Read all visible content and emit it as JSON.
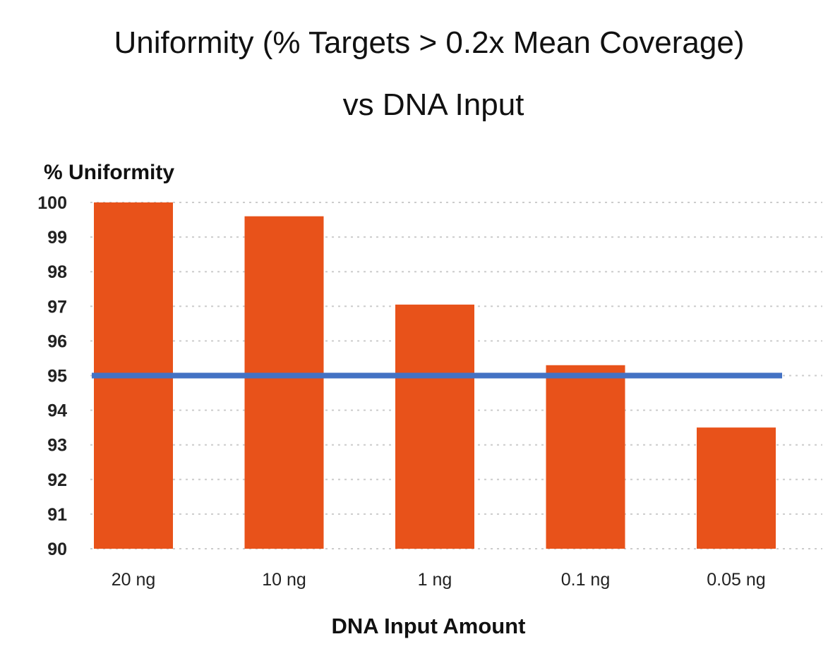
{
  "chart_data": {
    "type": "bar",
    "title_lines": [
      "Uniformity (% Targets > 0.2x Mean Coverage)",
      "vs DNA Input"
    ],
    "ylabel": "% Uniformity",
    "xlabel": "DNA Input Amount",
    "categories": [
      "20 ng",
      "10 ng",
      "1 ng",
      "0.1 ng",
      "0.05 ng"
    ],
    "values": [
      100,
      99.6,
      97.05,
      95.3,
      93.5
    ],
    "ylim": [
      90,
      100
    ],
    "yticks": [
      "90",
      "91",
      "92",
      "93",
      "94",
      "95",
      "96",
      "97",
      "98",
      "99",
      "100"
    ],
    "reference_line": 95,
    "grid": "dotted horizontal",
    "legend": "none",
    "colors": {
      "bar": "#e8521a",
      "reference_line": "#4472c4",
      "grid": "#cccccc"
    }
  }
}
